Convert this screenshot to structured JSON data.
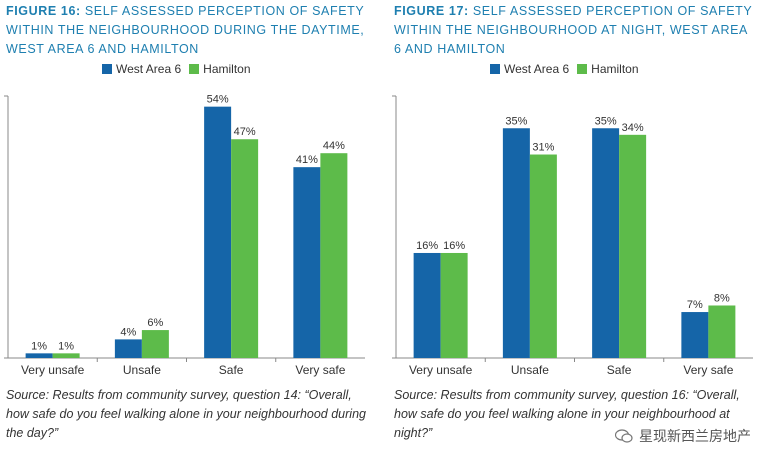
{
  "colors": {
    "west": "#1565a8",
    "hamilton": "#5dbb4a",
    "title": "#1e7fb0"
  },
  "legend": {
    "west": "West Area 6",
    "hamilton": "Hamilton"
  },
  "figures": [
    {
      "label": "FIGURE 16:",
      "title": "SELF ASSESSED PERCEPTION OF SAFETY WITHIN THE NEIGHBOURHOOD DURING THE DAYTIME, WEST AREA 6 AND HAMILTON",
      "source": "Source: Results from community survey, question 14: “Overall, how safe do you feel walking alone in your neighbourhood during the day?”"
    },
    {
      "label": "FIGURE 17:",
      "title": "SELF ASSESSED PERCEPTION OF SAFETY WITHIN THE NEIGHBOURHOOD AT NIGHT, WEST AREA 6 AND HAMILTON",
      "source": "Source: Results from community survey, question 16: “Overall, how safe do you feel walking alone in your neighbourhood at night?”"
    }
  ],
  "watermark": "星现新西兰房地产",
  "chart_data": [
    {
      "type": "bar",
      "categories": [
        "Very unsafe",
        "Unsafe",
        "Safe",
        "Very safe"
      ],
      "series": [
        {
          "name": "West Area 6",
          "values": [
            1,
            4,
            54,
            41
          ]
        },
        {
          "name": "Hamilton",
          "values": [
            1,
            6,
            47,
            44
          ]
        }
      ],
      "ylim": [
        0,
        55
      ],
      "data_labels": true,
      "grid": false
    },
    {
      "type": "bar",
      "categories": [
        "Very unsafe",
        "Unsafe",
        "Safe",
        "Very safe"
      ],
      "series": [
        {
          "name": "West Area 6",
          "values": [
            16,
            35,
            35,
            7
          ]
        },
        {
          "name": "Hamilton",
          "values": [
            16,
            31,
            34,
            8
          ]
        }
      ],
      "ylim": [
        0,
        39
      ],
      "data_labels": true,
      "grid": false
    }
  ]
}
